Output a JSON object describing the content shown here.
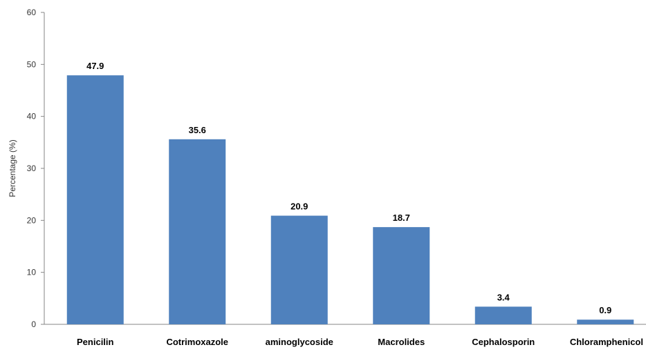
{
  "chart_data": {
    "type": "bar",
    "categories": [
      "Penicilin",
      "Cotrimoxazole",
      "aminoglycoside",
      "Macrolides",
      "Cephalosporin",
      "Chloramphenicol"
    ],
    "values": [
      47.9,
      35.6,
      20.9,
      18.7,
      3.4,
      0.9
    ],
    "data_labels": [
      "47.9",
      "35.6",
      "20.9",
      "18.7",
      "3.4",
      "0.9"
    ],
    "ylabel": "Percentage (%)",
    "xlabel": "",
    "ylim": [
      0,
      60
    ],
    "yticks": [
      0,
      10,
      20,
      30,
      40,
      50,
      60
    ],
    "ytick_labels": [
      "0",
      "10",
      "20",
      "30",
      "40",
      "50",
      "60"
    ],
    "grid": false,
    "legend": "none",
    "bar_color": "#4F81BD"
  }
}
